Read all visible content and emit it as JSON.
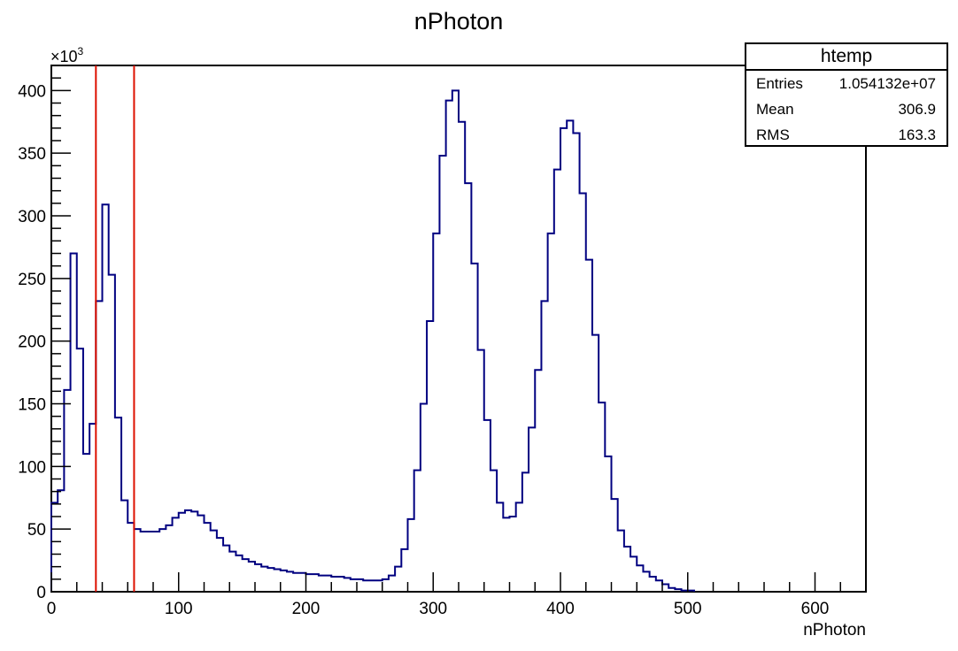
{
  "chart_data": {
    "type": "histogram",
    "title": "nPhoton",
    "xlabel": "nPhoton",
    "ylabel": "",
    "y_multiplier_label": "×10",
    "y_multiplier_exponent": "3",
    "xlim": [
      0,
      640
    ],
    "ylim": [
      0,
      420
    ],
    "bin_width": 5,
    "x_ticks": [
      0,
      100,
      200,
      300,
      400,
      500,
      600
    ],
    "y_ticks": [
      0,
      50,
      100,
      150,
      200,
      250,
      300,
      350,
      400
    ],
    "values": [
      71,
      81,
      161,
      270,
      194,
      110,
      134,
      232,
      309,
      253,
      139,
      73,
      55,
      50,
      48,
      48,
      48,
      50,
      53,
      59,
      63,
      65,
      64,
      61,
      55,
      49,
      43,
      37,
      32,
      29,
      26,
      24,
      22,
      20,
      19,
      18,
      17,
      16,
      15,
      15,
      14,
      14,
      13,
      13,
      12,
      12,
      11,
      10,
      10,
      9,
      9,
      9,
      10,
      13,
      20,
      34,
      58,
      97,
      150,
      216,
      286,
      348,
      392,
      400,
      375,
      326,
      262,
      193,
      137,
      97,
      71,
      59,
      60,
      71,
      95,
      131,
      177,
      232,
      286,
      337,
      370,
      376,
      366,
      318,
      265,
      205,
      151,
      108,
      74,
      49,
      36,
      28,
      21,
      16,
      12,
      9,
      6,
      3,
      2,
      1,
      1
    ],
    "series_color": "#000080",
    "markers": [
      {
        "x": 35,
        "color": "#dd1100"
      },
      {
        "x": 65,
        "color": "#dd1100"
      }
    ],
    "grid": false
  },
  "stats": {
    "title": "htemp",
    "rows": [
      {
        "label": "Entries",
        "value": "1.054132e+07"
      },
      {
        "label": "Mean",
        "value": "306.9"
      },
      {
        "label": "RMS",
        "value": "163.3"
      }
    ]
  }
}
